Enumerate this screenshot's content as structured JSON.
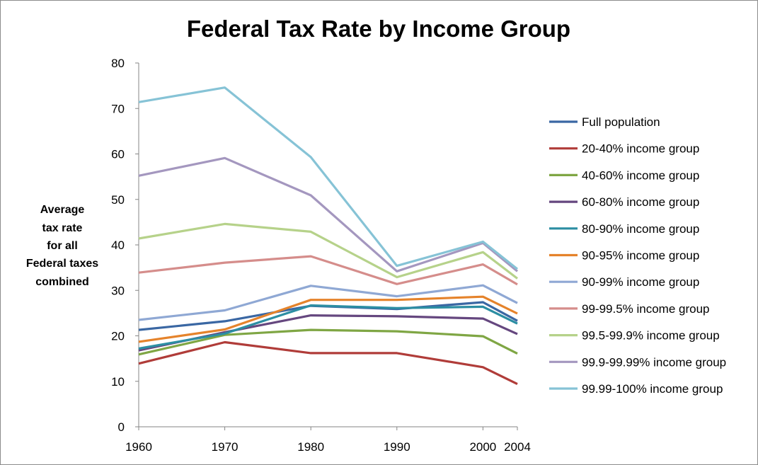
{
  "chart_data": {
    "type": "line",
    "title": "Federal Tax Rate by Income Group",
    "xlabel": "",
    "ylabel_lines": [
      "Average",
      "tax rate",
      "for all",
      "Federal taxes",
      "combined"
    ],
    "x": [
      1960,
      1970,
      1980,
      1990,
      2000,
      2004
    ],
    "x_tick_labels": [
      "1960",
      "1970",
      "1980",
      "1990",
      "2000",
      "2004"
    ],
    "ylim": [
      0,
      80
    ],
    "y_ticks": [
      0,
      10,
      20,
      30,
      40,
      50,
      60,
      70,
      80
    ],
    "grid": false,
    "legend_position": "right",
    "series": [
      {
        "name": "Full population",
        "color": "#3a67a3",
        "values": [
          21.3,
          23.2,
          26.6,
          25.9,
          27.4,
          23.3
        ]
      },
      {
        "name": "20-40% income group",
        "color": "#b03c39",
        "values": [
          13.9,
          18.6,
          16.2,
          16.2,
          13.1,
          9.4
        ]
      },
      {
        "name": "40-60% income group",
        "color": "#7fa644",
        "values": [
          15.9,
          20.2,
          21.3,
          21.0,
          19.9,
          16.1
        ]
      },
      {
        "name": "60-80% income group",
        "color": "#65477f",
        "values": [
          16.8,
          20.8,
          24.5,
          24.3,
          23.8,
          20.4
        ]
      },
      {
        "name": "80-90% income group",
        "color": "#2c8ea3",
        "values": [
          17.2,
          20.5,
          26.7,
          26.1,
          26.4,
          22.7
        ]
      },
      {
        "name": "90-95% income group",
        "color": "#e5832b",
        "values": [
          18.7,
          21.4,
          27.9,
          27.9,
          28.6,
          24.9
        ]
      },
      {
        "name": "90-99% income group",
        "color": "#8fa8d4",
        "values": [
          23.5,
          25.6,
          31.0,
          28.7,
          31.1,
          27.2
        ]
      },
      {
        "name": "99-99.5% income group",
        "color": "#d58d8b",
        "values": [
          33.9,
          36.1,
          37.5,
          31.4,
          35.7,
          31.3
        ]
      },
      {
        "name": "99.5-99.9% income group",
        "color": "#b6d28a",
        "values": [
          41.4,
          44.6,
          42.9,
          32.9,
          38.4,
          32.6
        ]
      },
      {
        "name": "99.9-99.99% income group",
        "color": "#a497bf",
        "values": [
          55.2,
          59.1,
          50.9,
          34.2,
          40.4,
          34.2
        ]
      },
      {
        "name": "99.99-100% income group",
        "color": "#86c3d6",
        "values": [
          71.4,
          74.6,
          59.3,
          35.4,
          40.7,
          34.7
        ]
      }
    ]
  }
}
